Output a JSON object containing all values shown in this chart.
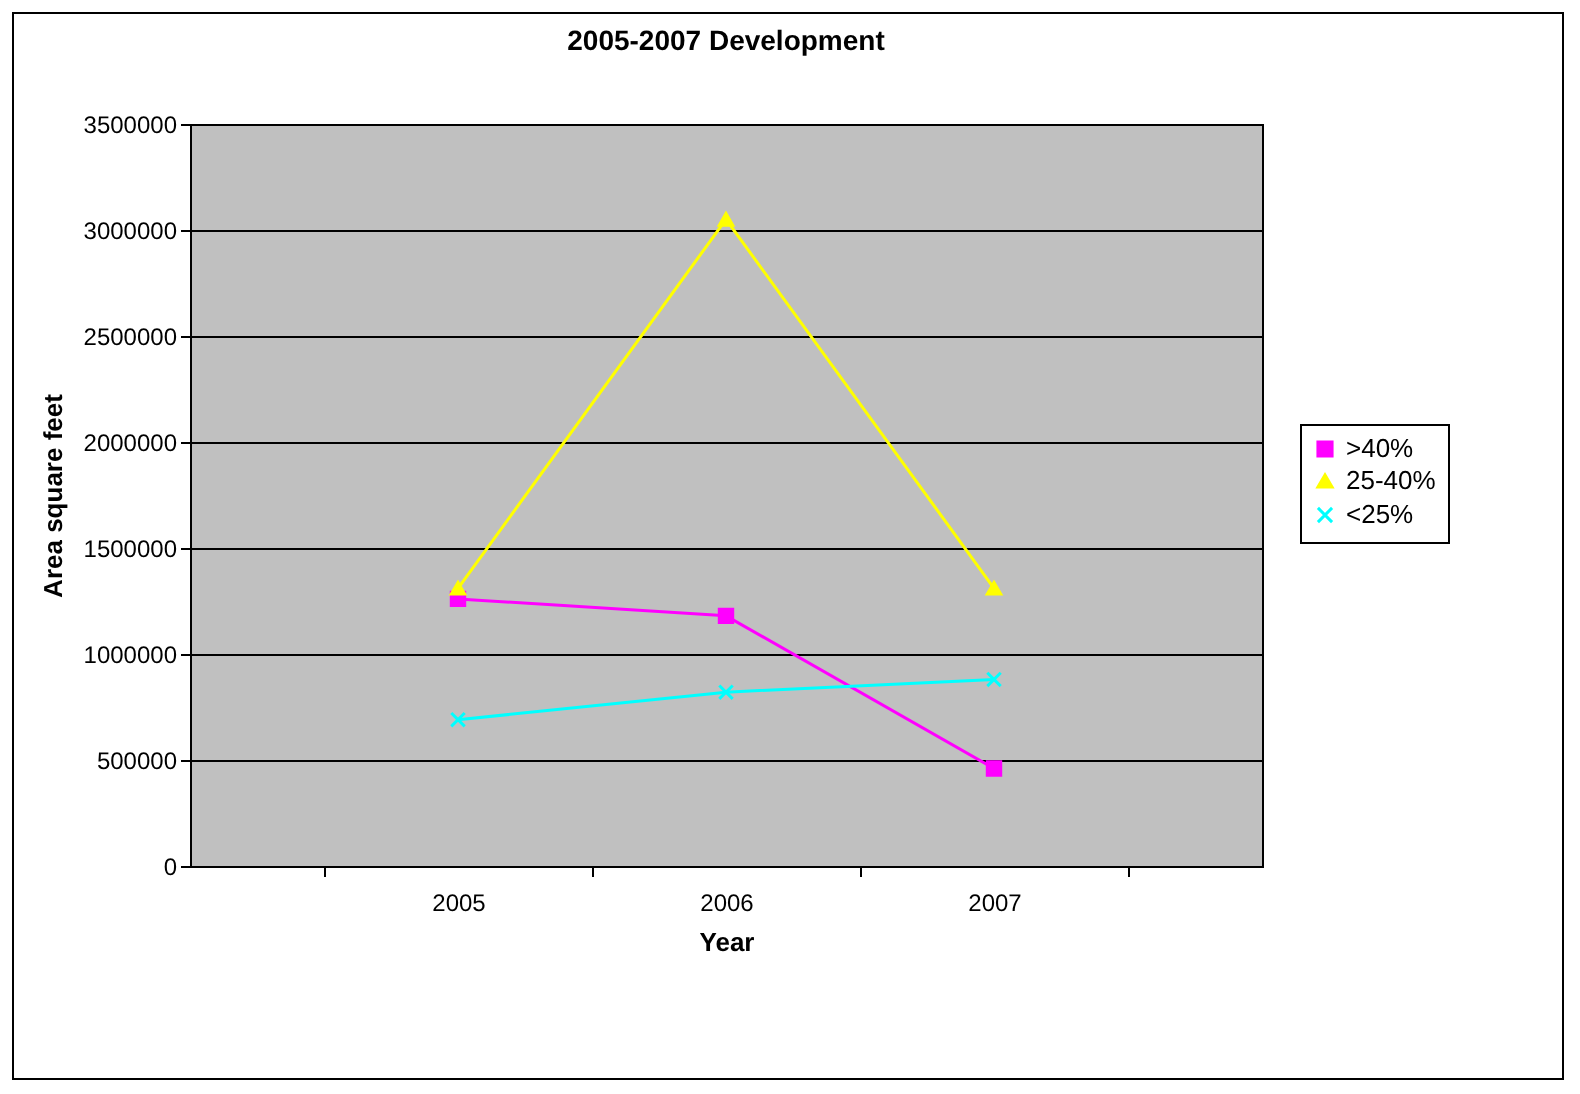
{
  "chart_data": {
    "type": "line",
    "title": "2005-2007 Development",
    "xlabel": "Year",
    "ylabel": "Area square feet",
    "categories": [
      "2005",
      "2006",
      "2007"
    ],
    "series": [
      {
        "name": ">40%",
        "color": "#ff00ff",
        "marker": "square",
        "values": [
          1260000,
          1180000,
          460000
        ]
      },
      {
        "name": "25-40%",
        "color": "#ffff00",
        "marker": "triangle",
        "values": [
          1310000,
          3050000,
          1310000
        ]
      },
      {
        "name": "<25%",
        "color": "#00ffff",
        "marker": "cross",
        "values": [
          690000,
          820000,
          880000
        ]
      }
    ],
    "ylim": [
      0,
      3500000
    ],
    "yticks": [
      0,
      500000,
      1000000,
      1500000,
      2000000,
      2500000,
      3000000,
      3500000
    ],
    "grid": "y",
    "legend": "right"
  }
}
